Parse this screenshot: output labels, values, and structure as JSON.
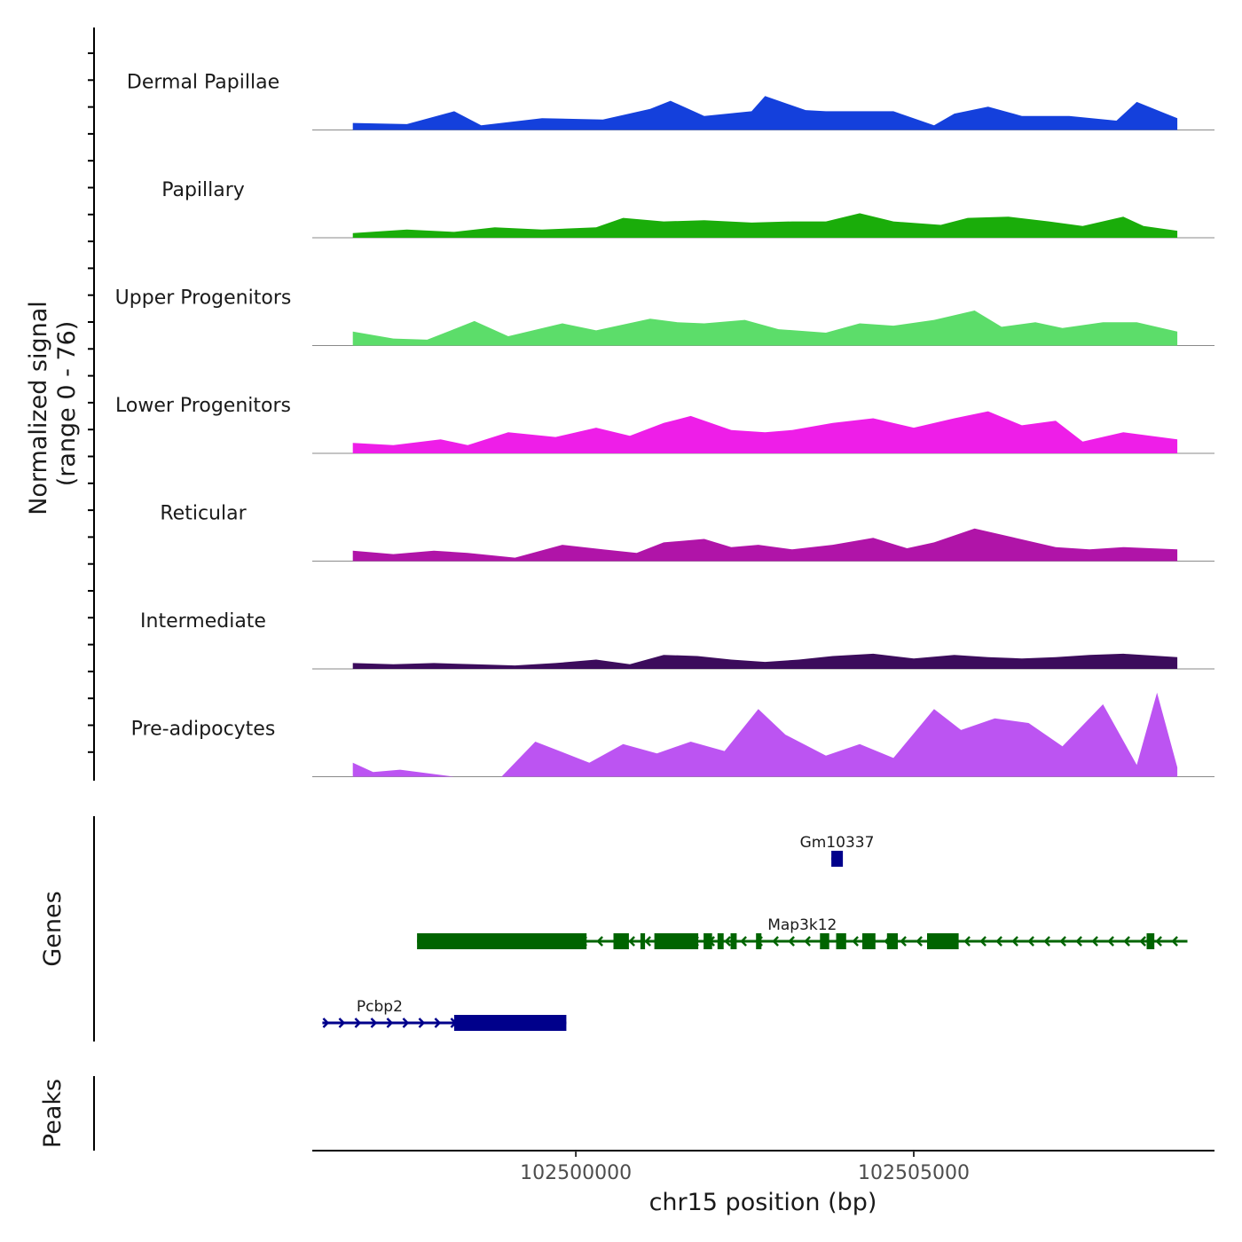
{
  "chart_data": {
    "type": "area",
    "title": "",
    "xlabel": "chr15 position (bp)",
    "xlim": [
      102496100,
      102509450
    ],
    "x_ticks": [
      102500000,
      102505000
    ],
    "x_tick_labels": [
      "102500000",
      "102505000"
    ],
    "signal_axis_label": "Normalized signal",
    "signal_axis_sublabel": "(range 0 - 76)",
    "ylim": [
      0,
      76
    ],
    "genes_axis_label": "Genes",
    "peaks_axis_label": "Peaks",
    "series": [
      {
        "name": "Dermal Papillae",
        "color": "#1440dc",
        "x": [
          102496700,
          102497500,
          102498200,
          102498600,
          102499500,
          102500400,
          102501100,
          102501400,
          102501900,
          102502600,
          102502800,
          102503400,
          102503700,
          102504200,
          102504700,
          102505300,
          102505600,
          102506100,
          102506600,
          102507300,
          102508000,
          102508300,
          102508900
        ],
        "values": [
          6,
          5,
          16,
          4,
          10,
          9,
          18,
          25,
          12,
          16,
          29,
          17,
          16,
          16,
          16,
          4,
          14,
          20,
          12,
          12,
          8,
          24,
          10
        ]
      },
      {
        "name": "Papillary",
        "color": "#1aad0a",
        "x": [
          102496700,
          102497500,
          102498200,
          102498800,
          102499500,
          102500300,
          102500700,
          102501300,
          102501900,
          102502600,
          102503200,
          102503700,
          102504200,
          102504700,
          102505400,
          102505800,
          102506400,
          102507000,
          102507500,
          102508100,
          102508400,
          102508900
        ],
        "values": [
          4,
          7,
          5,
          9,
          7,
          9,
          17,
          14,
          15,
          13,
          14,
          14,
          21,
          14,
          11,
          17,
          18,
          14,
          10,
          18,
          10,
          6
        ]
      },
      {
        "name": "Upper Progenitors",
        "color": "#5cdd6a",
        "x": [
          102496700,
          102497300,
          102497800,
          102498500,
          102499000,
          102499800,
          102500300,
          102501100,
          102501500,
          102501900,
          102502500,
          102503000,
          102503700,
          102504200,
          102504700,
          102505300,
          102505900,
          102506300,
          102506800,
          102507200,
          102507800,
          102508300,
          102508900
        ],
        "values": [
          12,
          6,
          5,
          21,
          8,
          19,
          13,
          23,
          20,
          19,
          22,
          14,
          11,
          19,
          17,
          22,
          30,
          16,
          20,
          15,
          20,
          20,
          12
        ]
      },
      {
        "name": "Lower Progenitors",
        "color": "#ee1ee8",
        "x": [
          102496700,
          102497300,
          102498000,
          102498400,
          102499000,
          102499700,
          102500300,
          102500800,
          102501300,
          102501700,
          102502300,
          102502800,
          102503200,
          102503800,
          102504400,
          102505000,
          102505600,
          102506100,
          102506600,
          102507100,
          102507500,
          102508100,
          102508900
        ],
        "values": [
          9,
          7,
          12,
          7,
          18,
          14,
          22,
          15,
          26,
          32,
          20,
          18,
          20,
          26,
          30,
          22,
          30,
          36,
          24,
          28,
          10,
          18,
          12
        ]
      },
      {
        "name": "Reticular",
        "color": "#b014a8",
        "x": [
          102496700,
          102497300,
          102497900,
          102498400,
          102499100,
          102499800,
          102500400,
          102500900,
          102501300,
          102501900,
          102502300,
          102502700,
          102503200,
          102503800,
          102504400,
          102504900,
          102505300,
          102505900,
          102506500,
          102507100,
          102507600,
          102508100,
          102508900
        ],
        "values": [
          9,
          6,
          9,
          7,
          3,
          14,
          10,
          7,
          16,
          19,
          12,
          14,
          10,
          14,
          20,
          11,
          16,
          28,
          20,
          12,
          10,
          12,
          10
        ]
      },
      {
        "name": "Intermediate",
        "color": "#3c0c5c",
        "x": [
          102496700,
          102497300,
          102497900,
          102498500,
          102499100,
          102499700,
          102500300,
          102500800,
          102501300,
          102501800,
          102502300,
          102502800,
          102503300,
          102503800,
          102504400,
          102505000,
          102505600,
          102506100,
          102506600,
          102507100,
          102507600,
          102508100,
          102508900
        ],
        "values": [
          5,
          4,
          5,
          4,
          3,
          5,
          8,
          4,
          12,
          11,
          8,
          6,
          8,
          11,
          13,
          9,
          12,
          10,
          9,
          10,
          12,
          13,
          10
        ]
      },
      {
        "name": "Pre-adipocytes",
        "color": "#bc54f2",
        "x": [
          102496700,
          102497000,
          102497400,
          102498200,
          102498900,
          102499400,
          102500200,
          102500700,
          102501200,
          102501700,
          102502200,
          102502700,
          102503100,
          102503700,
          102504200,
          102504700,
          102505300,
          102505700,
          102506200,
          102506700,
          102507200,
          102507800,
          102508300,
          102508600,
          102508900
        ],
        "values": [
          12,
          4,
          6,
          0,
          0,
          30,
          12,
          28,
          20,
          30,
          22,
          58,
          36,
          18,
          28,
          16,
          58,
          40,
          50,
          46,
          26,
          62,
          10,
          72,
          8
        ]
      }
    ],
    "genes": [
      {
        "name": "Gm10337",
        "start": 102503780,
        "end": 102503950,
        "strand": "+",
        "color": "#00008b"
      },
      {
        "name": "Map3k12",
        "start": 102497650,
        "end": 102509050,
        "strand": "-",
        "color": "#006400"
      },
      {
        "name": "Pcbp2",
        "start": 102496250,
        "end": 102499860,
        "strand": "+",
        "color": "#00008b"
      }
    ],
    "peaks": []
  }
}
